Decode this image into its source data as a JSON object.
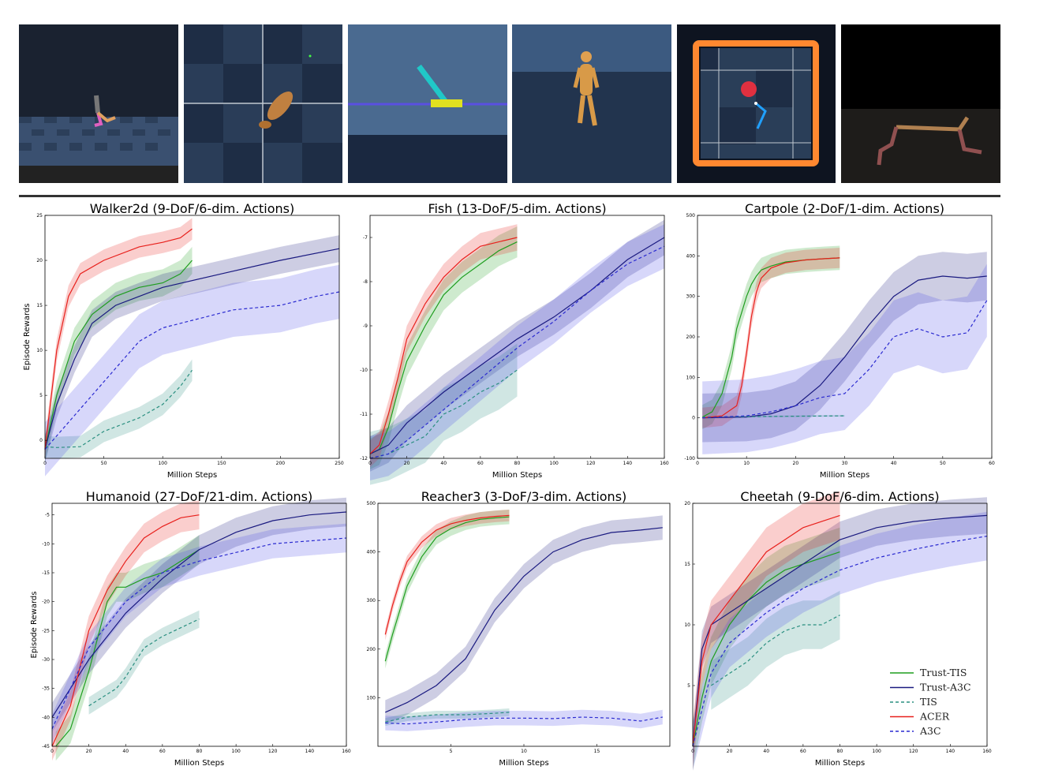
{
  "figure": {
    "legend": [
      {
        "label": "Trust-TIS",
        "color": "#1f9e1f",
        "dash": false
      },
      {
        "label": "Trust-A3C",
        "color": "#1a1a80",
        "dash": false
      },
      {
        "label": "TIS",
        "color": "#2a8f80",
        "dash": true
      },
      {
        "label": "ACER",
        "color": "#e8201c",
        "dash": false
      },
      {
        "label": "A3C",
        "color": "#2a2ad0",
        "dash": true
      }
    ],
    "thumbnails": [
      "walker2d-scene",
      "fish-scene",
      "cartpole-scene",
      "humanoid-scene",
      "reacher3-scene",
      "cheetah-scene"
    ]
  },
  "chart_data": [
    {
      "type": "line",
      "title": "Walker2d (9-DoF/6-dim. Actions)",
      "xlabel": "Million Steps",
      "ylabel": "Episode Rewards",
      "xlim": [
        0,
        250
      ],
      "ylim": [
        -2,
        25
      ],
      "xticks": [
        0,
        50,
        100,
        150,
        200,
        250
      ],
      "yticks": [
        0,
        5,
        10,
        15,
        20,
        25
      ],
      "series": [
        {
          "name": "Trust-TIS",
          "x": [
            0,
            10,
            25,
            40,
            60,
            80,
            100,
            115,
            125
          ],
          "y": [
            -1,
            5,
            11,
            14,
            16,
            17,
            17.5,
            18.5,
            20
          ],
          "band": 1.5
        },
        {
          "name": "Trust-A3C",
          "x": [
            0,
            10,
            25,
            40,
            60,
            100,
            150,
            200,
            250
          ],
          "y": [
            -1,
            4,
            9,
            13,
            15,
            17,
            18.5,
            20,
            21.3
          ],
          "band": 1.5
        },
        {
          "name": "TIS",
          "x": [
            0,
            10,
            30,
            50,
            80,
            100,
            115,
            125
          ],
          "y": [
            -0.7,
            -0.8,
            -0.7,
            1,
            2.5,
            4,
            6,
            7.8
          ],
          "band": 1.2
        },
        {
          "name": "ACER",
          "x": [
            0,
            10,
            20,
            30,
            50,
            80,
            100,
            115,
            125
          ],
          "y": [
            -1,
            10,
            16,
            18.5,
            20,
            21.5,
            22,
            22.5,
            23.5
          ],
          "band": 1.2
        },
        {
          "name": "A3C",
          "x": [
            0,
            20,
            40,
            60,
            80,
            100,
            130,
            160,
            200,
            230,
            250
          ],
          "y": [
            -1,
            2,
            5,
            8,
            11,
            12.5,
            13.5,
            14.5,
            15,
            16,
            16.5
          ],
          "band": 3
        }
      ]
    },
    {
      "type": "line",
      "title": "Fish (13-DoF/5-dim. Actions)",
      "xlabel": "Million Steps",
      "ylabel": "",
      "xlim": [
        0,
        160
      ],
      "ylim": [
        -12,
        -6.5
      ],
      "xticks": [
        0,
        20,
        40,
        60,
        80,
        100,
        120,
        140,
        160
      ],
      "yticks": [
        -12,
        -11,
        -10,
        -9,
        -8,
        -7
      ],
      "series": [
        {
          "name": "Trust-TIS",
          "x": [
            0,
            5,
            10,
            15,
            20,
            30,
            40,
            50,
            60,
            70,
            80
          ],
          "y": [
            -11.9,
            -11.8,
            -11.3,
            -10.5,
            -9.8,
            -9,
            -8.3,
            -7.9,
            -7.6,
            -7.3,
            -7.1
          ],
          "band": 0.35
        },
        {
          "name": "Trust-A3C",
          "x": [
            0,
            10,
            20,
            40,
            60,
            80,
            100,
            120,
            140,
            160
          ],
          "y": [
            -11.9,
            -11.7,
            -11.2,
            -10.5,
            -9.9,
            -9.3,
            -8.8,
            -8.2,
            -7.5,
            -7
          ],
          "band": 0.4
        },
        {
          "name": "TIS",
          "x": [
            0,
            10,
            20,
            30,
            40,
            50,
            60,
            70,
            80
          ],
          "y": [
            -12,
            -11.9,
            -11.7,
            -11.5,
            -11,
            -10.8,
            -10.5,
            -10.3,
            -10
          ],
          "band": 0.6
        },
        {
          "name": "ACER",
          "x": [
            0,
            5,
            10,
            15,
            20,
            30,
            40,
            50,
            60,
            70,
            80
          ],
          "y": [
            -11.9,
            -11.7,
            -11,
            -10.2,
            -9.3,
            -8.5,
            -7.9,
            -7.5,
            -7.2,
            -7.1,
            -7
          ],
          "band": 0.3
        },
        {
          "name": "A3C",
          "x": [
            0,
            10,
            20,
            40,
            60,
            80,
            100,
            120,
            140,
            160
          ],
          "y": [
            -12,
            -11.9,
            -11.6,
            -10.9,
            -10.2,
            -9.5,
            -8.9,
            -8.2,
            -7.6,
            -7.2
          ],
          "band": 0.5
        }
      ]
    },
    {
      "type": "line",
      "title": "Cartpole (2-DoF/1-dim. Actions)",
      "xlabel": "Million Steps",
      "ylabel": "",
      "xlim": [
        0,
        60
      ],
      "ylim": [
        -100,
        500
      ],
      "xticks": [
        0,
        10,
        20,
        30,
        40,
        50,
        60
      ],
      "yticks": [
        -100,
        0,
        100,
        200,
        300,
        400,
        500
      ],
      "series": [
        {
          "name": "Trust-TIS",
          "x": [
            1,
            3,
            5,
            7,
            8,
            9,
            10,
            11,
            12,
            13,
            15,
            18,
            22,
            26,
            29
          ],
          "y": [
            2,
            15,
            60,
            150,
            220,
            260,
            300,
            330,
            350,
            365,
            375,
            385,
            390,
            393,
            395
          ],
          "band": 30
        },
        {
          "name": "Trust-A3C",
          "x": [
            1,
            10,
            15,
            20,
            25,
            30,
            35,
            40,
            45,
            50,
            55,
            59
          ],
          "y": [
            0,
            2,
            10,
            30,
            80,
            150,
            230,
            300,
            340,
            350,
            345,
            350
          ],
          "band": 60
        },
        {
          "name": "TIS",
          "x": [
            1,
            10,
            20,
            30
          ],
          "y": [
            2,
            3,
            4,
            5
          ],
          "band": 2
        },
        {
          "name": "ACER",
          "x": [
            1,
            5,
            8,
            9,
            10,
            11,
            12,
            13,
            15,
            18,
            22,
            26,
            29
          ],
          "y": [
            0,
            5,
            30,
            80,
            160,
            250,
            310,
            345,
            370,
            383,
            390,
            393,
            395
          ],
          "band": 25
        },
        {
          "name": "A3C",
          "x": [
            1,
            10,
            15,
            20,
            25,
            30,
            35,
            40,
            45,
            50,
            55,
            59
          ],
          "y": [
            0,
            5,
            15,
            30,
            50,
            60,
            120,
            200,
            220,
            200,
            210,
            290
          ],
          "band": 90
        }
      ]
    },
    {
      "type": "line",
      "title": "Humanoid (27-DoF/21-dim. Actions)",
      "xlabel": "Million Steps",
      "ylabel": "Episode Rewards",
      "xlim": [
        0,
        160
      ],
      "ylim": [
        -45,
        -3
      ],
      "xticks": [
        0,
        20,
        40,
        60,
        80,
        100,
        120,
        140,
        160
      ],
      "yticks": [
        -45,
        -40,
        -35,
        -30,
        -25,
        -20,
        -15,
        -10,
        -5
      ],
      "series": [
        {
          "name": "Trust-TIS",
          "x": [
            2,
            10,
            20,
            30,
            35,
            40,
            50,
            60,
            70,
            80
          ],
          "y": [
            -45,
            -42,
            -32,
            -20,
            -17.5,
            -17.5,
            -16,
            -15,
            -13,
            -11
          ],
          "band": 2.5
        },
        {
          "name": "Trust-A3C",
          "x": [
            0,
            10,
            20,
            30,
            40,
            60,
            80,
            100,
            120,
            140,
            160
          ],
          "y": [
            -40,
            -35,
            -30,
            -26,
            -22,
            -16,
            -11,
            -8,
            -6,
            -5,
            -4.5
          ],
          "band": 2.5
        },
        {
          "name": "TIS",
          "x": [
            20,
            30,
            35,
            40,
            50,
            60,
            70,
            80
          ],
          "y": [
            -38,
            -36,
            -35,
            -33,
            -28,
            -26,
            -24.5,
            -23
          ],
          "band": 1.5
        },
        {
          "name": "ACER",
          "x": [
            0,
            10,
            20,
            30,
            40,
            50,
            60,
            70,
            80
          ],
          "y": [
            -45,
            -38,
            -25,
            -18,
            -13,
            -9,
            -7,
            -5.5,
            -5
          ],
          "band": 2.5
        },
        {
          "name": "A3C",
          "x": [
            0,
            10,
            20,
            30,
            40,
            60,
            80,
            100,
            120,
            140,
            160
          ],
          "y": [
            -42,
            -35,
            -28,
            -24,
            -20,
            -15,
            -13,
            -11.5,
            -10,
            -9.5,
            -9
          ],
          "band": 2.5
        }
      ]
    },
    {
      "type": "line",
      "title": "Reacher3 (3-DoF/3-dim. Actions)",
      "xlabel": "Million Steps",
      "ylabel": "",
      "xlim": [
        0,
        20
      ],
      "ylim": [
        0,
        500
      ],
      "xticks": [
        5,
        10,
        15
      ],
      "yticks": [
        100,
        200,
        300,
        400,
        500
      ],
      "series": [
        {
          "name": "Trust-TIS",
          "x": [
            0.5,
            1,
            1.5,
            2,
            3,
            4,
            5,
            6,
            7,
            8,
            9
          ],
          "y": [
            175,
            230,
            280,
            330,
            390,
            430,
            448,
            460,
            467,
            470,
            472
          ],
          "band": 15
        },
        {
          "name": "Trust-A3C",
          "x": [
            0.5,
            2,
            4,
            6,
            8,
            10,
            12,
            14,
            16,
            18,
            19.5
          ],
          "y": [
            70,
            90,
            125,
            180,
            280,
            350,
            400,
            425,
            440,
            445,
            450
          ],
          "band": 25
        },
        {
          "name": "TIS",
          "x": [
            0.5,
            2,
            4,
            6,
            8,
            9
          ],
          "y": [
            50,
            60,
            65,
            65,
            68,
            70
          ],
          "band": 8
        },
        {
          "name": "ACER",
          "x": [
            0.5,
            1,
            1.5,
            2,
            3,
            4,
            5,
            6,
            7,
            8,
            9
          ],
          "y": [
            230,
            290,
            340,
            380,
            420,
            445,
            458,
            465,
            470,
            473,
            475
          ],
          "band": 12
        },
        {
          "name": "A3C",
          "x": [
            0.5,
            2,
            4,
            6,
            8,
            10,
            12,
            14,
            16,
            18,
            19.5
          ],
          "y": [
            48,
            46,
            50,
            55,
            58,
            58,
            57,
            60,
            58,
            52,
            60
          ],
          "band": 15
        }
      ]
    },
    {
      "type": "line",
      "title": "Cheetah (9-DoF/6-dim. Actions)",
      "xlabel": "Million Steps",
      "ylabel": "",
      "xlim": [
        0,
        160
      ],
      "ylim": [
        0,
        20
      ],
      "xticks": [
        0,
        20,
        40,
        60,
        80,
        100,
        120,
        140,
        160
      ],
      "yticks": [
        5,
        10,
        15,
        20
      ],
      "series": [
        {
          "name": "Trust-TIS",
          "x": [
            0,
            5,
            10,
            20,
            30,
            40,
            50,
            60,
            70,
            80
          ],
          "y": [
            0,
            4,
            7,
            10,
            12,
            13.5,
            14.5,
            15,
            15.5,
            16
          ],
          "band": 2
        },
        {
          "name": "Trust-A3C",
          "x": [
            0,
            5,
            10,
            20,
            40,
            60,
            80,
            100,
            120,
            140,
            160
          ],
          "y": [
            0,
            8,
            10,
            11,
            13,
            15,
            17,
            18,
            18.5,
            18.8,
            19
          ],
          "band": 1.5
        },
        {
          "name": "TIS",
          "x": [
            10,
            20,
            30,
            40,
            50,
            60,
            70,
            80
          ],
          "y": [
            5,
            6,
            7,
            8.5,
            9.5,
            10,
            10,
            10.8
          ],
          "band": 2
        },
        {
          "name": "ACER",
          "x": [
            0,
            5,
            10,
            20,
            30,
            40,
            50,
            60,
            70,
            80
          ],
          "y": [
            0,
            7,
            10,
            12,
            14,
            16,
            17,
            18,
            18.5,
            19
          ],
          "band": 2
        },
        {
          "name": "A3C",
          "x": [
            0,
            10,
            20,
            40,
            60,
            80,
            100,
            120,
            140,
            160
          ],
          "y": [
            0,
            6,
            8.5,
            11,
            13,
            14.5,
            15.5,
            16.2,
            16.8,
            17.3
          ],
          "band": 2
        }
      ]
    }
  ]
}
